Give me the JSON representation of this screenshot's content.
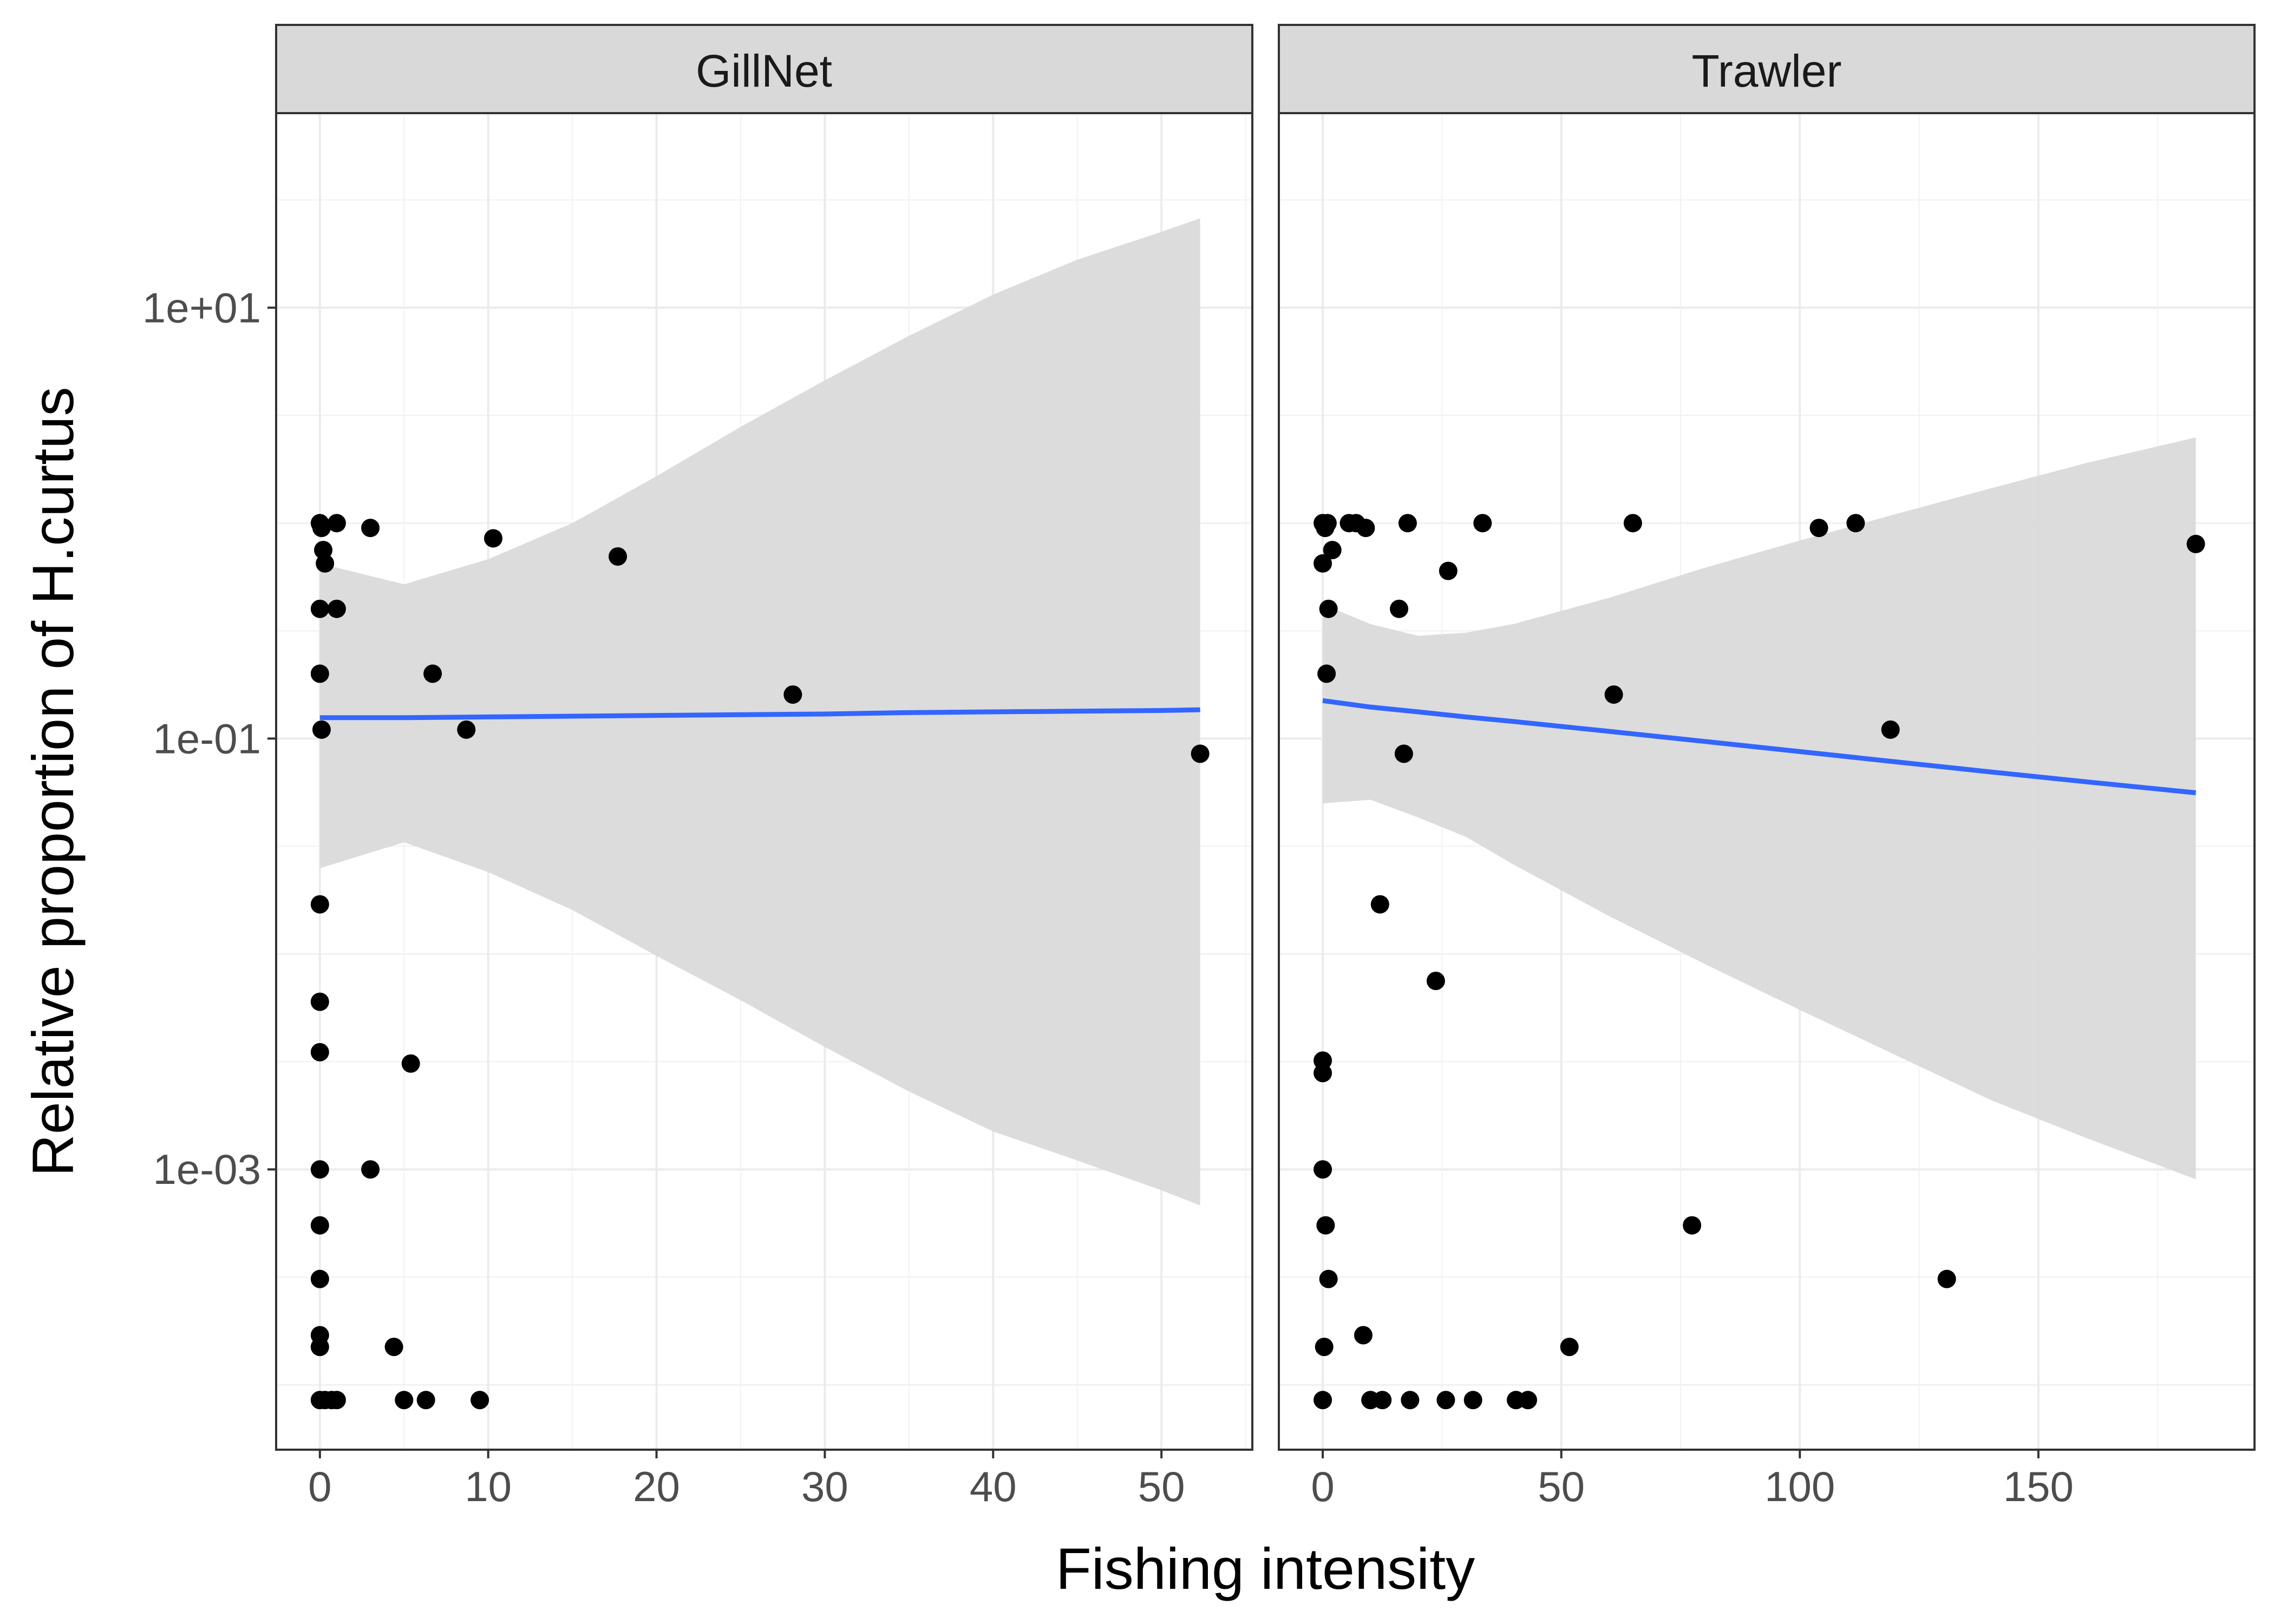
{
  "chart_data": {
    "type": "scatter",
    "facet_by": "gear",
    "xlabel": "Fishing intensity",
    "ylabel": "Relative proportion of H.curtus",
    "y_scale": "log10",
    "y_ticks": [
      "1e-03",
      "1e-01",
      "1e+01"
    ],
    "y_tick_values": [
      0.001,
      0.1,
      10
    ],
    "ylim": [
      5e-05,
      80
    ],
    "grid": true,
    "point_color": "#000000",
    "line_color": "#3366ff",
    "ribbon_color": "#d9d9d9",
    "panels": [
      {
        "name": "GillNet",
        "xlim": [
          -2.6,
          55.4
        ],
        "x_ticks": [
          "0",
          "10",
          "20",
          "30",
          "40",
          "50"
        ],
        "x_tick_values": [
          0,
          10,
          20,
          30,
          40,
          50
        ],
        "points": [
          {
            "x": 0,
            "y": 1.0
          },
          {
            "x": 0.1,
            "y": 0.95
          },
          {
            "x": 0.2,
            "y": 0.75
          },
          {
            "x": 0.3,
            "y": 0.65
          },
          {
            "x": 0,
            "y": 0.4
          },
          {
            "x": 0,
            "y": 0.2
          },
          {
            "x": 0.1,
            "y": 0.11
          },
          {
            "x": 1.0,
            "y": 1.0
          },
          {
            "x": 1.0,
            "y": 0.4
          },
          {
            "x": 3.0,
            "y": 0.95
          },
          {
            "x": 10.3,
            "y": 0.85
          },
          {
            "x": 17.7,
            "y": 0.7
          },
          {
            "x": 8.7,
            "y": 0.11
          },
          {
            "x": 6.7,
            "y": 0.2
          },
          {
            "x": 28.1,
            "y": 0.16
          },
          {
            "x": 52.3,
            "y": 0.085
          },
          {
            "x": 0,
            "y": 0.017
          },
          {
            "x": 0,
            "y": 0.006
          },
          {
            "x": 0,
            "y": 0.0035
          },
          {
            "x": 5.4,
            "y": 0.0031
          },
          {
            "x": 0,
            "y": 0.001
          },
          {
            "x": 3.0,
            "y": 0.001
          },
          {
            "x": 0,
            "y": 0.00055
          },
          {
            "x": 0,
            "y": 0.00031
          },
          {
            "x": 0,
            "y": 0.00017
          },
          {
            "x": 0,
            "y": 0.00015
          },
          {
            "x": 4.4,
            "y": 0.00015
          },
          {
            "x": 0,
            "y": 8.5e-05
          },
          {
            "x": 0.3,
            "y": 8.5e-05
          },
          {
            "x": 0.7,
            "y": 8.5e-05
          },
          {
            "x": 1.0,
            "y": 8.5e-05
          },
          {
            "x": 5.0,
            "y": 8.5e-05
          },
          {
            "x": 6.3,
            "y": 8.5e-05
          },
          {
            "x": 9.5,
            "y": 8.5e-05
          }
        ],
        "fit": {
          "x": [
            0,
            5,
            10,
            15,
            20,
            25,
            30,
            35,
            40,
            45,
            50,
            52.3
          ],
          "y": [
            0.125,
            0.125,
            0.126,
            0.127,
            0.128,
            0.129,
            0.13,
            0.132,
            0.133,
            0.134,
            0.135,
            0.136
          ],
          "upper": [
            0.65,
            0.52,
            0.68,
            1.0,
            1.65,
            2.8,
            4.6,
            7.4,
            11.5,
            16.7,
            22.5,
            26
          ],
          "lower": [
            0.025,
            0.033,
            0.024,
            0.016,
            0.0098,
            0.0061,
            0.0037,
            0.0023,
            0.0015,
            0.0011,
            0.0008,
            0.00068
          ]
        }
      },
      {
        "name": "Trawler",
        "xlim": [
          -9.2,
          195.3
        ],
        "x_ticks": [
          "0",
          "50",
          "100",
          "150"
        ],
        "x_tick_values": [
          0,
          50,
          100,
          150
        ],
        "points": [
          {
            "x": 0,
            "y": 1.0
          },
          {
            "x": 0.5,
            "y": 0.95
          },
          {
            "x": 1.0,
            "y": 1.0
          },
          {
            "x": 2.0,
            "y": 0.75
          },
          {
            "x": 0,
            "y": 0.65
          },
          {
            "x": 1.2,
            "y": 0.4
          },
          {
            "x": 5.5,
            "y": 1.0
          },
          {
            "x": 7.0,
            "y": 1.0
          },
          {
            "x": 9.0,
            "y": 0.95
          },
          {
            "x": 17.8,
            "y": 1.0
          },
          {
            "x": 33.5,
            "y": 1.0
          },
          {
            "x": 65.0,
            "y": 1.0
          },
          {
            "x": 16.0,
            "y": 0.4
          },
          {
            "x": 26.3,
            "y": 0.6
          },
          {
            "x": 0.8,
            "y": 0.2
          },
          {
            "x": 61.0,
            "y": 0.16
          },
          {
            "x": 17.0,
            "y": 0.085
          },
          {
            "x": 104.0,
            "y": 0.95
          },
          {
            "x": 111.7,
            "y": 1.0
          },
          {
            "x": 119.0,
            "y": 0.11
          },
          {
            "x": 183.0,
            "y": 0.8
          },
          {
            "x": 12.0,
            "y": 0.017
          },
          {
            "x": 23.7,
            "y": 0.0075
          },
          {
            "x": 0,
            "y": 0.0032
          },
          {
            "x": 0,
            "y": 0.0028
          },
          {
            "x": 0,
            "y": 0.001
          },
          {
            "x": 0.6,
            "y": 0.00055
          },
          {
            "x": 1.2,
            "y": 0.00031
          },
          {
            "x": 8.5,
            "y": 0.00017
          },
          {
            "x": 0.3,
            "y": 0.00015
          },
          {
            "x": 51.7,
            "y": 0.00015
          },
          {
            "x": 77.4,
            "y": 0.00055
          },
          {
            "x": 130.8,
            "y": 0.00031
          },
          {
            "x": 0,
            "y": 8.5e-05
          },
          {
            "x": 10.0,
            "y": 8.5e-05
          },
          {
            "x": 12.5,
            "y": 8.5e-05
          },
          {
            "x": 18.3,
            "y": 8.5e-05
          },
          {
            "x": 25.8,
            "y": 8.5e-05
          },
          {
            "x": 31.5,
            "y": 8.5e-05
          },
          {
            "x": 40.5,
            "y": 8.5e-05
          },
          {
            "x": 43.0,
            "y": 8.5e-05
          }
        ],
        "fit": {
          "x": [
            0,
            10,
            20,
            30,
            40,
            60,
            80,
            100,
            120,
            140,
            160,
            183
          ],
          "y": [
            0.15,
            0.14,
            0.133,
            0.126,
            0.12,
            0.108,
            0.097,
            0.087,
            0.078,
            0.07,
            0.063,
            0.056
          ],
          "upper": [
            0.42,
            0.34,
            0.3,
            0.31,
            0.34,
            0.45,
            0.62,
            0.83,
            1.1,
            1.45,
            1.9,
            2.5
          ],
          "lower": [
            0.05,
            0.052,
            0.043,
            0.035,
            0.026,
            0.015,
            0.009,
            0.0055,
            0.0034,
            0.0021,
            0.0014,
            0.0009
          ]
        }
      }
    ]
  }
}
